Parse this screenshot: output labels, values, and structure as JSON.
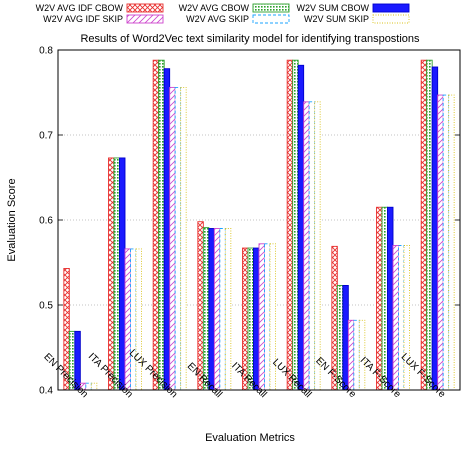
{
  "chart_data": {
    "type": "bar",
    "title": "Results of Word2Vec text similarity model for identifying transpostions",
    "xlabel": "Evaluation Metrics",
    "ylabel": "Evaluation Score",
    "ylim": [
      0.4,
      0.8
    ],
    "yticks": [
      "0.4",
      "0.5",
      "0.6",
      "0.7",
      "0.8"
    ],
    "grid": "horizontal dotted",
    "legend_placement": "top",
    "categories": [
      "EN Precision",
      "ITA Precision",
      "LUX Precision",
      "EN Recall",
      "ITA Recall",
      "LUX Recall",
      "EN F-Score",
      "ITA F-Score",
      "LUX F-Score"
    ],
    "series": [
      {
        "name": "W2V AVG IDF CBOW",
        "color": "#e8302f",
        "pattern": "crosshatch",
        "values": [
          0.543,
          0.673,
          0.788,
          0.598,
          0.567,
          0.788,
          0.569,
          0.615,
          0.788
        ]
      },
      {
        "name": "W2V AVG CBOW",
        "color": "#2ca02c",
        "pattern": "dots",
        "values": [
          0.469,
          0.673,
          0.788,
          0.591,
          0.567,
          0.788,
          0.523,
          0.615,
          0.788
        ]
      },
      {
        "name": "W2V SUM CBOW",
        "color": "#1a1aff",
        "pattern": "solid",
        "values": [
          0.469,
          0.673,
          0.778,
          0.59,
          0.567,
          0.782,
          0.523,
          0.615,
          0.78
        ]
      },
      {
        "name": "W2V AVG IDF SKIP",
        "color": "#cc44cc",
        "pattern": "diagonal",
        "values": [
          0.408,
          0.566,
          0.756,
          0.59,
          0.572,
          0.739,
          0.482,
          0.57,
          0.747
        ]
      },
      {
        "name": "W2V AVG SKIP",
        "color": "#1aa3ff",
        "pattern": "dashed-outline",
        "values": [
          0.408,
          0.566,
          0.756,
          0.59,
          0.572,
          0.739,
          0.482,
          0.57,
          0.747
        ]
      },
      {
        "name": "W2V SUM SKIP",
        "color": "#d9c21a",
        "pattern": "dotted-outline",
        "values": [
          0.408,
          0.566,
          0.756,
          0.59,
          0.572,
          0.739,
          0.482,
          0.57,
          0.747
        ]
      }
    ]
  }
}
